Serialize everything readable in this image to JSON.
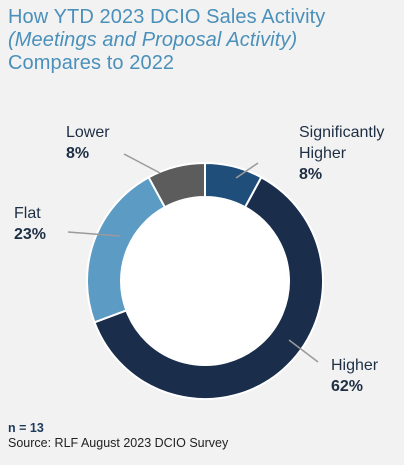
{
  "title": {
    "line1": "How YTD 2023 DCIO Sales Activity",
    "line2": "(Meetings and Proposal Activity)",
    "line3": "Compares to 2022"
  },
  "chart_data": {
    "type": "pie",
    "donut": true,
    "slices": [
      {
        "label": "Significantly Higher",
        "label_lines": [
          "Significantly",
          "Higher"
        ],
        "value": 8,
        "display": "8%",
        "color": "#1f4e7a"
      },
      {
        "label": "Higher",
        "label_lines": [
          "Higher"
        ],
        "value": 62,
        "display": "62%",
        "color": "#1a2e4c"
      },
      {
        "label": "Flat",
        "label_lines": [
          "Flat"
        ],
        "value": 23,
        "display": "23%",
        "color": "#5b9bc4"
      },
      {
        "label": "Lower",
        "label_lines": [
          "Lower"
        ],
        "value": 8,
        "display": "8%",
        "color": "#5c5c5c"
      }
    ]
  },
  "footer": {
    "n": "n = 13",
    "source": "Source: RLF August 2023 DCIO Survey"
  }
}
